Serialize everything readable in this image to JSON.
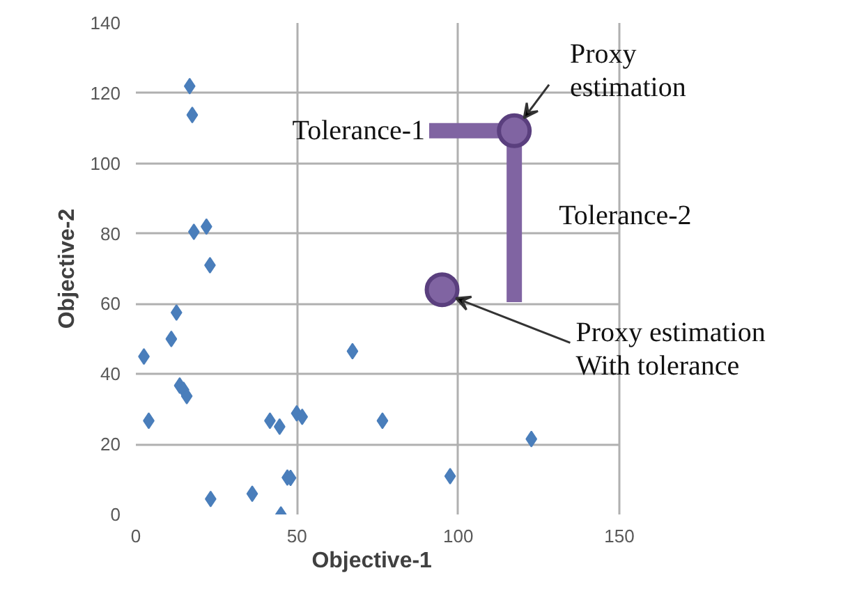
{
  "chart_data": {
    "type": "scatter",
    "xlabel": "Objective-1",
    "ylabel": "Objective-2",
    "xlim": [
      0,
      150
    ],
    "xticks": [
      0,
      50,
      100,
      150
    ],
    "ylim": [
      0,
      140
    ],
    "yticks": [
      0,
      20,
      40,
      60,
      80,
      100,
      120,
      140
    ],
    "grid": true,
    "series": [
      {
        "type": "scatter",
        "marker": "diamond",
        "color": "#4a7ebb",
        "x": [
          16.7,
          17.5,
          18,
          21.9,
          23,
          2.5,
          4,
          11,
          12.6,
          13.6,
          14.8,
          15.8,
          23.2,
          36.1,
          41.6,
          44.6,
          45,
          47,
          48,
          49.9,
          51.6,
          67.2,
          76.5,
          97.5,
          122.7
        ],
        "values": [
          122,
          113.8,
          80.5,
          82,
          71,
          45,
          26.7,
          50,
          57.5,
          36.7,
          35.5,
          33.7,
          4.4,
          5.9,
          26.7,
          25,
          0,
          10.5,
          10.4,
          28.8,
          27.8,
          46.5,
          26.7,
          10.9,
          21.5
        ]
      },
      {
        "type": "line",
        "color": "#8064a2",
        "x": [
          91,
          117.4,
          117.4
        ],
        "values": [
          109.3,
          109.3,
          60.5
        ]
      },
      {
        "type": "scatter",
        "marker": "circle",
        "color": "#8064a2",
        "x": [
          95,
          117.4
        ],
        "values": [
          64,
          109.3
        ]
      }
    ],
    "annotations": [
      {
        "text": "Tolerance-1",
        "x": 91,
        "y": 109.3
      },
      {
        "text": "Proxy\nestimation",
        "x": 120.4,
        "y": 112.9
      },
      {
        "text": "Tolerance-2",
        "x": 117.4,
        "y": 85
      },
      {
        "text": "Proxy estimation\nWith tolerance",
        "x": 99.3,
        "y": 61.6
      }
    ]
  }
}
